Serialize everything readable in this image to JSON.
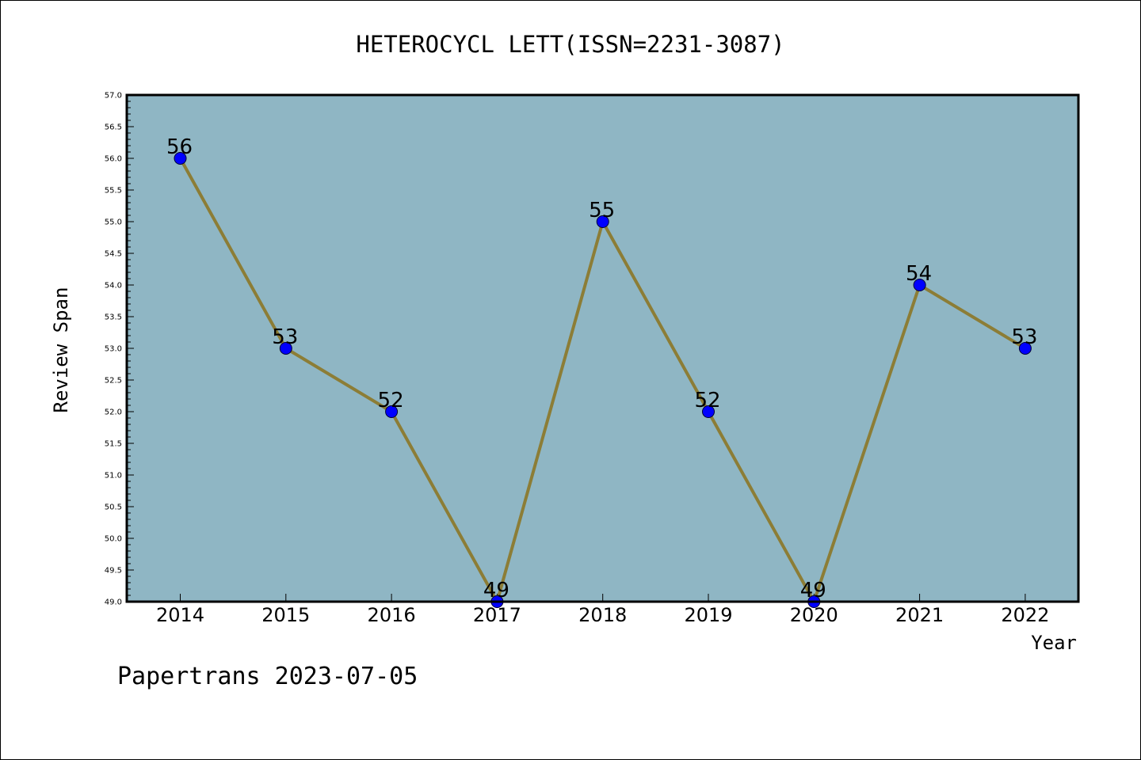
{
  "chart_data": {
    "type": "line",
    "title": "HETEROCYCL LETT(ISSN=2231-3087)",
    "xlabel": "Year",
    "ylabel": "Review Span",
    "categories": [
      "2014",
      "2015",
      "2016",
      "2017",
      "2018",
      "2019",
      "2020",
      "2021",
      "2022"
    ],
    "series": [
      {
        "values": [
          56,
          53,
          52,
          49,
          55,
          52,
          49,
          54,
          53
        ]
      }
    ],
    "data_labels": [
      "56",
      "53",
      "52",
      "49",
      "55",
      "52",
      "49",
      "54",
      "53"
    ],
    "ylim": [
      49.0,
      57.0
    ],
    "y_ticks": [
      "49.0",
      "49.5",
      "50.0",
      "50.5",
      "51.0",
      "51.5",
      "52.0",
      "52.5",
      "53.0",
      "53.5",
      "54.0",
      "54.5",
      "55.0",
      "55.5",
      "56.0",
      "56.5",
      "57.0"
    ],
    "grid": false,
    "plot_background": "#8fb6c4",
    "line_color": "#8c7d36",
    "marker_color": "#0000ff"
  },
  "footer": {
    "credit": "Papertrans 2023-07-05"
  }
}
